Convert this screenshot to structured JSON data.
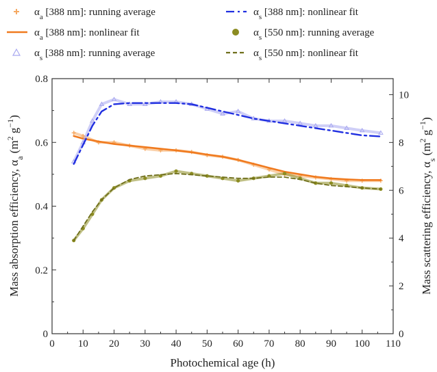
{
  "chart_data": {
    "type": "scatter",
    "xlabel": "Photochemical age (h)",
    "ylabel_left": "Mass absorption efficiency, αa (m² g⁻¹)",
    "ylabel_right": "Mass scattering efficiency, αs (m² g⁻¹)",
    "xlim": [
      0,
      110
    ],
    "ylim_left": [
      0,
      0.8
    ],
    "ylim_right": [
      0,
      10.67
    ],
    "xticks": [
      "0",
      "10",
      "20",
      "30",
      "40",
      "50",
      "60",
      "70",
      "80",
      "90",
      "100",
      "110"
    ],
    "yticks_left": [
      "0",
      "0.2",
      "0.4",
      "0.6",
      "0.8"
    ],
    "yticks_right": [
      "0",
      "2",
      "4",
      "6",
      "8",
      "10"
    ],
    "grid": false,
    "legend_position": "top",
    "legend": [
      {
        "key": "aa388_avg",
        "prefix": "α",
        "sub": "a",
        "text": " [388 nm]: running average"
      },
      {
        "key": "as388_fit",
        "prefix": "α",
        "sub": "s",
        "text": " [388 nm]: nonlinear fit"
      },
      {
        "key": "aa388_fit",
        "prefix": "α",
        "sub": "a",
        "text": " [388 nm]: nonlinear fit"
      },
      {
        "key": "as550_avg",
        "prefix": "α",
        "sub": "s",
        "text": " [550 nm]: running average"
      },
      {
        "key": "as388_avg",
        "prefix": "α",
        "sub": "s",
        "text": " [388 nm]: running average"
      },
      {
        "key": "as550_fit",
        "prefix": "α",
        "sub": "s",
        "text": " [550 nm]: nonlinear fit"
      }
    ],
    "colors": {
      "aa388_avg": "#f5a962",
      "aa388_fit": "#f07a1e",
      "as388_avg": "#a8a8f0",
      "as388_fit": "#1f2ee0",
      "as550_avg": "#8c8c22",
      "as550_fit": "#6e6e1a"
    },
    "series": [
      {
        "name": "αa [388 nm]: running average",
        "axis": "left",
        "x": [
          7,
          10,
          15,
          20,
          25,
          30,
          35,
          40,
          45,
          50,
          55,
          60,
          65,
          70,
          75,
          80,
          85,
          90,
          95,
          100,
          106
        ],
        "y": [
          0.63,
          0.62,
          0.6,
          0.6,
          0.59,
          0.58,
          0.575,
          0.575,
          0.57,
          0.56,
          0.555,
          0.545,
          0.53,
          0.515,
          0.5,
          0.495,
          0.49,
          0.485,
          0.48,
          0.48,
          0.48
        ]
      },
      {
        "name": "αa [388 nm]: nonlinear fit",
        "axis": "left",
        "x": [
          7,
          10,
          15,
          20,
          25,
          30,
          35,
          40,
          45,
          50,
          55,
          60,
          65,
          70,
          75,
          80,
          85,
          90,
          95,
          100,
          106
        ],
        "y": [
          0.62,
          0.612,
          0.603,
          0.595,
          0.59,
          0.585,
          0.58,
          0.575,
          0.569,
          0.562,
          0.555,
          0.545,
          0.533,
          0.52,
          0.508,
          0.5,
          0.492,
          0.487,
          0.484,
          0.482,
          0.482
        ]
      },
      {
        "name": "αs [388 nm]: running average",
        "axis": "right",
        "x": [
          7,
          10,
          13,
          16,
          20,
          25,
          30,
          35,
          40,
          45,
          50,
          55,
          60,
          65,
          70,
          75,
          80,
          85,
          90,
          95,
          100,
          106
        ],
        "y": [
          7.2,
          8.0,
          8.9,
          9.6,
          9.8,
          9.6,
          9.6,
          9.7,
          9.7,
          9.6,
          9.4,
          9.2,
          9.3,
          9.0,
          8.9,
          8.9,
          8.8,
          8.7,
          8.7,
          8.6,
          8.5,
          8.4
        ]
      },
      {
        "name": "αs [388 nm]: nonlinear fit",
        "axis": "right",
        "x": [
          7,
          10,
          13,
          16,
          20,
          25,
          30,
          35,
          40,
          45,
          50,
          55,
          60,
          65,
          70,
          75,
          80,
          85,
          90,
          95,
          100,
          106
        ],
        "y": [
          7.1,
          7.9,
          8.7,
          9.3,
          9.6,
          9.65,
          9.65,
          9.65,
          9.65,
          9.6,
          9.45,
          9.3,
          9.15,
          9.0,
          8.9,
          8.8,
          8.7,
          8.6,
          8.5,
          8.4,
          8.3,
          8.25
        ]
      },
      {
        "name": "αs [550 nm]: running average",
        "axis": "right",
        "x": [
          7,
          10,
          13,
          16,
          20,
          25,
          30,
          35,
          40,
          45,
          50,
          55,
          60,
          65,
          70,
          75,
          80,
          85,
          90,
          95,
          100,
          106
        ],
        "y": [
          3.9,
          4.4,
          5.0,
          5.6,
          6.1,
          6.4,
          6.5,
          6.6,
          6.8,
          6.7,
          6.6,
          6.5,
          6.4,
          6.5,
          6.6,
          6.7,
          6.5,
          6.3,
          6.3,
          6.2,
          6.1,
          6.05
        ]
      },
      {
        "name": "αs [550 nm]: nonlinear fit",
        "axis": "right",
        "x": [
          7,
          10,
          13,
          16,
          20,
          25,
          30,
          35,
          40,
          45,
          50,
          55,
          60,
          65,
          70,
          75,
          80,
          85,
          90,
          95,
          100,
          106
        ],
        "y": [
          3.9,
          4.5,
          5.1,
          5.6,
          6.1,
          6.45,
          6.6,
          6.65,
          6.7,
          6.65,
          6.6,
          6.55,
          6.5,
          6.5,
          6.55,
          6.55,
          6.45,
          6.3,
          6.2,
          6.15,
          6.1,
          6.05
        ]
      }
    ]
  }
}
